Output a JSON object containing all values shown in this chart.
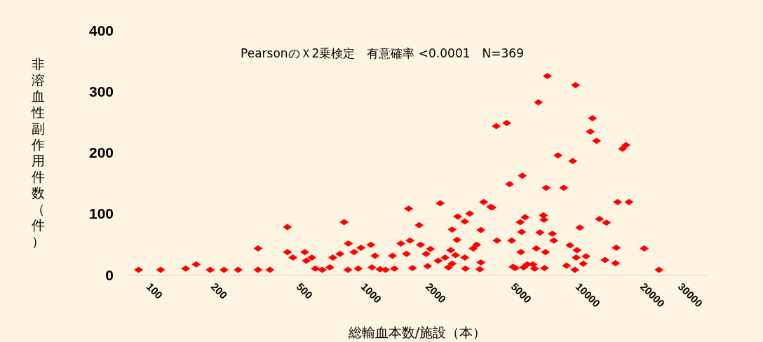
{
  "chart_data": {
    "type": "scatter",
    "title": "PearsonのＸ2乗検定　有意確率 <0.0001　N=369",
    "xlabel": "総輸血本数/施設（本）",
    "ylabel": "非溶血性副作用件数（件）",
    "log": "x",
    "xlim": [
      80,
      40000
    ],
    "xticks": [
      100,
      200,
      500,
      1000,
      2000,
      5000,
      10000,
      20000,
      30000
    ],
    "ylim": [
      0,
      400
    ],
    "yticks": [
      0,
      100,
      200,
      300,
      400
    ],
    "grid": false,
    "marker": "diamond",
    "x": [
      90,
      114,
      149,
      167,
      194,
      225,
      262,
      324,
      368,
      444,
      471,
      535,
      544,
      577,
      646,
      723,
      324,
      444,
      780,
      816,
      854,
      907,
      978,
      1087,
      1137,
      1273,
      1371,
      1501,
      1594,
      1631,
      1655,
      1825,
      1853,
      1968,
      2060,
      2238,
      2288,
      2412,
      2560,
      2600,
      2698,
      2740,
      2761,
      2978,
      3140,
      3260,
      3383,
      3540,
      3648,
      3933,
      3992,
      4176,
      4209,
      4674,
      4819,
      4931,
      5117,
      5397,
      5433,
      5482,
      5520,
      5689,
      5821,
      6180,
      6412,
      6561,
      6668,
      6918,
      6966,
      7079,
      7129,
      7228,
      7621,
      7739,
      8093,
      8610,
      8872,
      9204,
      9484,
      9705,
      9773,
      9843,
      9931,
      10233,
      10617,
      10938,
      11455,
      11722,
      12250,
      12630,
      13400,
      13610,
      15000,
      15130,
      15350,
      16180,
      16790,
      17340,
      20420,
      23930,
      600,
      700,
      850,
      950,
      1100,
      1200,
      1400,
      1700,
      2000,
      2500,
      3000,
      3500,
      5000,
      5600,
      6300,
      7000,
      2978,
      2600,
      3540
    ],
    "values": [
      8,
      8,
      10,
      17,
      8,
      8,
      8,
      43,
      8,
      78,
      28,
      37,
      23,
      28,
      8,
      28,
      8,
      37,
      34,
      86,
      51,
      37,
      44,
      49,
      31,
      8,
      31,
      51,
      34,
      108,
      56,
      81,
      49,
      34,
      42,
      23,
      117,
      28,
      40,
      74,
      32,
      57,
      95,
      87,
      100,
      43,
      49,
      73,
      119,
      111,
      110,
      243,
      56,
      248,
      148,
      56,
      11,
      86,
      37,
      70,
      162,
      94,
      17,
      17,
      43,
      282,
      69,
      97,
      90,
      37,
      142,
      325,
      67,
      56,
      195,
      142,
      15,
      48,
      186,
      8,
      310,
      28,
      40,
      77,
      18,
      30,
      234,
      256,
      219,
      91,
      24,
      85,
      19,
      44,
      119,
      206,
      212,
      119,
      43,
      8,
      10,
      12,
      8,
      10,
      12,
      9,
      10,
      11,
      14,
      12,
      10,
      9,
      13,
      12,
      10,
      11,
      28,
      18,
      20
    ],
    "color": "#ff0000"
  }
}
